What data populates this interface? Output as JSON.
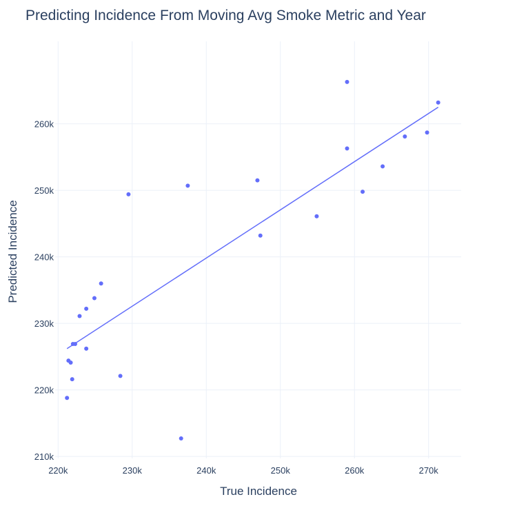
{
  "chart_data": {
    "type": "scatter",
    "title": "Predicting Incidence From Moving Avg Smoke Metric and Year",
    "xlabel": "True Incidence",
    "ylabel": "Predicted Incidence",
    "xlim": [
      219600,
      274400
    ],
    "ylim": [
      209700,
      272400
    ],
    "x_ticks": [
      220000,
      230000,
      240000,
      250000,
      260000,
      270000
    ],
    "x_tick_labels": [
      "220k",
      "230k",
      "240k",
      "250k",
      "260k",
      "270k"
    ],
    "y_ticks": [
      210000,
      220000,
      230000,
      240000,
      250000,
      260000
    ],
    "y_tick_labels": [
      "210k",
      "220k",
      "230k",
      "240k",
      "250k",
      "260k"
    ],
    "grid": true,
    "marker_color": "#636efa",
    "points": [
      {
        "x": 221200,
        "y": 218800
      },
      {
        "x": 221400,
        "y": 224400
      },
      {
        "x": 221700,
        "y": 224100
      },
      {
        "x": 221900,
        "y": 221600
      },
      {
        "x": 222000,
        "y": 226900
      },
      {
        "x": 222300,
        "y": 226900
      },
      {
        "x": 222900,
        "y": 231100
      },
      {
        "x": 223800,
        "y": 232200
      },
      {
        "x": 223800,
        "y": 226200
      },
      {
        "x": 224900,
        "y": 233800
      },
      {
        "x": 225800,
        "y": 236000
      },
      {
        "x": 228400,
        "y": 222100
      },
      {
        "x": 229500,
        "y": 249400
      },
      {
        "x": 236600,
        "y": 212700
      },
      {
        "x": 237500,
        "y": 250700
      },
      {
        "x": 246900,
        "y": 251500
      },
      {
        "x": 247300,
        "y": 243200
      },
      {
        "x": 254900,
        "y": 246100
      },
      {
        "x": 259000,
        "y": 256300
      },
      {
        "x": 259000,
        "y": 266300
      },
      {
        "x": 261100,
        "y": 249800
      },
      {
        "x": 263800,
        "y": 253600
      },
      {
        "x": 266800,
        "y": 258100
      },
      {
        "x": 269800,
        "y": 258700
      },
      {
        "x": 271300,
        "y": 263200
      }
    ],
    "trendline": {
      "x": [
        221200,
        271300
      ],
      "y": [
        226200,
        262500
      ]
    }
  }
}
